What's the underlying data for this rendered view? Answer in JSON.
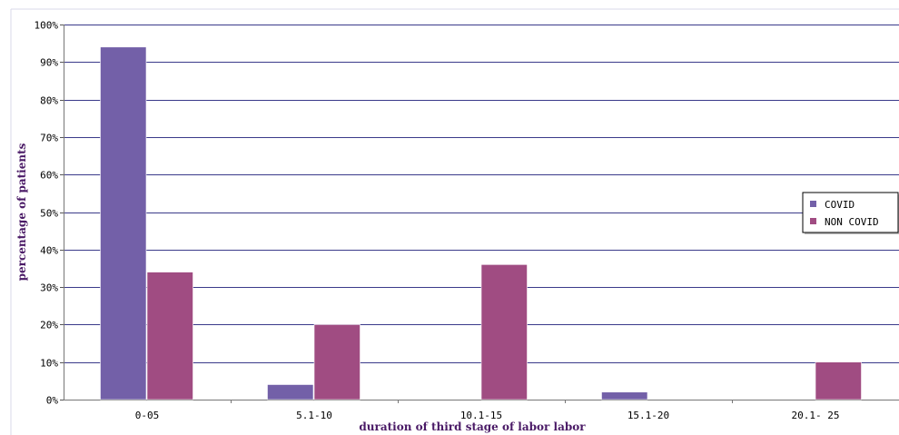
{
  "chart_data": {
    "type": "bar",
    "title": "",
    "xlabel": "duration of third stage of labor labor",
    "ylabel": "percentage of patients",
    "categories": [
      "0-05",
      "5.1-10",
      "10.1-15",
      "15.1-20",
      "20.1- 25"
    ],
    "series": [
      {
        "name": "COVID",
        "values": [
          94,
          4,
          0,
          2,
          0
        ],
        "color": "#7360a8"
      },
      {
        "name": "NON COVID",
        "values": [
          34,
          20,
          36,
          0,
          10
        ],
        "color": "#a04c82"
      }
    ],
    "ylim": [
      0,
      100
    ],
    "yticks": [
      0,
      10,
      20,
      30,
      40,
      50,
      60,
      70,
      80,
      90,
      100
    ],
    "ytick_format": "percent",
    "grid": true,
    "legend_position": "right",
    "plot_background": "#ffffff",
    "gridline_color": "#3a3a8a"
  }
}
